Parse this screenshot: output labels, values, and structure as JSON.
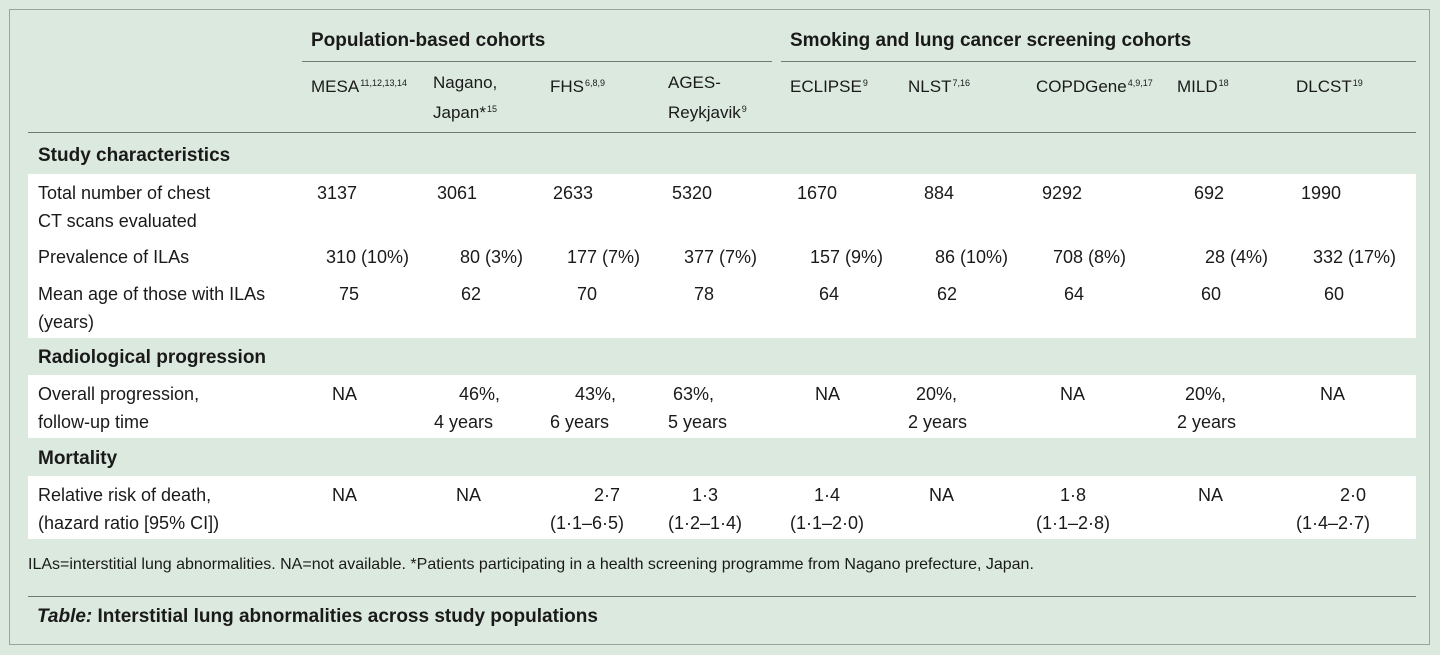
{
  "groups": {
    "population": "Population-based cohorts",
    "smoking": "Smoking and lung cancer screening cohorts"
  },
  "columns": [
    {
      "name": "MESA",
      "sup": "11,12,13,14",
      "line2": ""
    },
    {
      "name": "Nagano,",
      "sup": "",
      "line2": "Japan*",
      "line2_sup": "15"
    },
    {
      "name": "FHS",
      "sup": "6,8,9",
      "line2": ""
    },
    {
      "name": "AGES-",
      "sup": "",
      "line2": "Reykjavik",
      "line2_sup": "9"
    },
    {
      "name": "ECLIPSE",
      "sup": "9",
      "line2": ""
    },
    {
      "name": "NLST",
      "sup": "7,16",
      "line2": ""
    },
    {
      "name": "COPDGene",
      "sup": "4,9,17",
      "line2": ""
    },
    {
      "name": "MILD",
      "sup": "18",
      "line2": ""
    },
    {
      "name": "DLCST",
      "sup": "19",
      "line2": ""
    }
  ],
  "sections": {
    "study": "Study characteristics",
    "radiological": "Radiological progression",
    "mortality": "Mortality"
  },
  "rows": {
    "total": {
      "label1": "Total number of chest",
      "label2": "CT scans evaluated",
      "values": [
        "3137",
        "3061",
        "2633",
        "5320",
        "1670",
        "884",
        "9292",
        "692",
        "1990"
      ]
    },
    "prevalence": {
      "label1": "Prevalence of ILAs",
      "values": [
        "310 (10%)",
        "80 (3%)",
        "177 (7%)",
        "377 (7%)",
        "157 (9%)",
        "86 (10%)",
        "708 (8%)",
        "28 (4%)",
        "332 (17%)"
      ]
    },
    "mean_age": {
      "label1": "Mean age of those with ILAs",
      "label2": "(years)",
      "values": [
        "75",
        "62",
        "70",
        "78",
        "64",
        "62",
        "64",
        "60",
        "60"
      ]
    },
    "progression": {
      "label1": "Overall progression,",
      "label2": "follow-up time",
      "values": [
        {
          "l1": "NA",
          "l2": ""
        },
        {
          "l1": "46%,",
          "l2": "4 years"
        },
        {
          "l1": "43%,",
          "l2": "6 years"
        },
        {
          "l1": "63%,",
          "l2": "5 years"
        },
        {
          "l1": "NA",
          "l2": ""
        },
        {
          "l1": "20%,",
          "l2": "2 years"
        },
        {
          "l1": "NA",
          "l2": ""
        },
        {
          "l1": "20%,",
          "l2": "2 years"
        },
        {
          "l1": "NA",
          "l2": ""
        }
      ]
    },
    "relative_risk": {
      "label1": "Relative risk of death,",
      "label2": "(hazard ratio [95% CI])",
      "values": [
        {
          "l1": "NA",
          "l2": ""
        },
        {
          "l1": "NA",
          "l2": ""
        },
        {
          "l1": "2·7",
          "l2": "(1·1–6·5)"
        },
        {
          "l1": "1·3",
          "l2": "(1·2–1·4)"
        },
        {
          "l1": "1·4",
          "l2": "(1·1–2·0)"
        },
        {
          "l1": "NA",
          "l2": ""
        },
        {
          "l1": "1·8",
          "l2": "(1·1–2·8)"
        },
        {
          "l1": "NA",
          "l2": ""
        },
        {
          "l1": "2·0",
          "l2": "(1·4–2·7)"
        }
      ]
    }
  },
  "footnote": "ILAs=interstitial lung abnormalities. NA=not available. *Patients participating in a health screening programme from Nagano prefecture, Japan.",
  "caption": {
    "label": "Table:",
    "text": "Interstitial lung abnormalities across study populations"
  }
}
